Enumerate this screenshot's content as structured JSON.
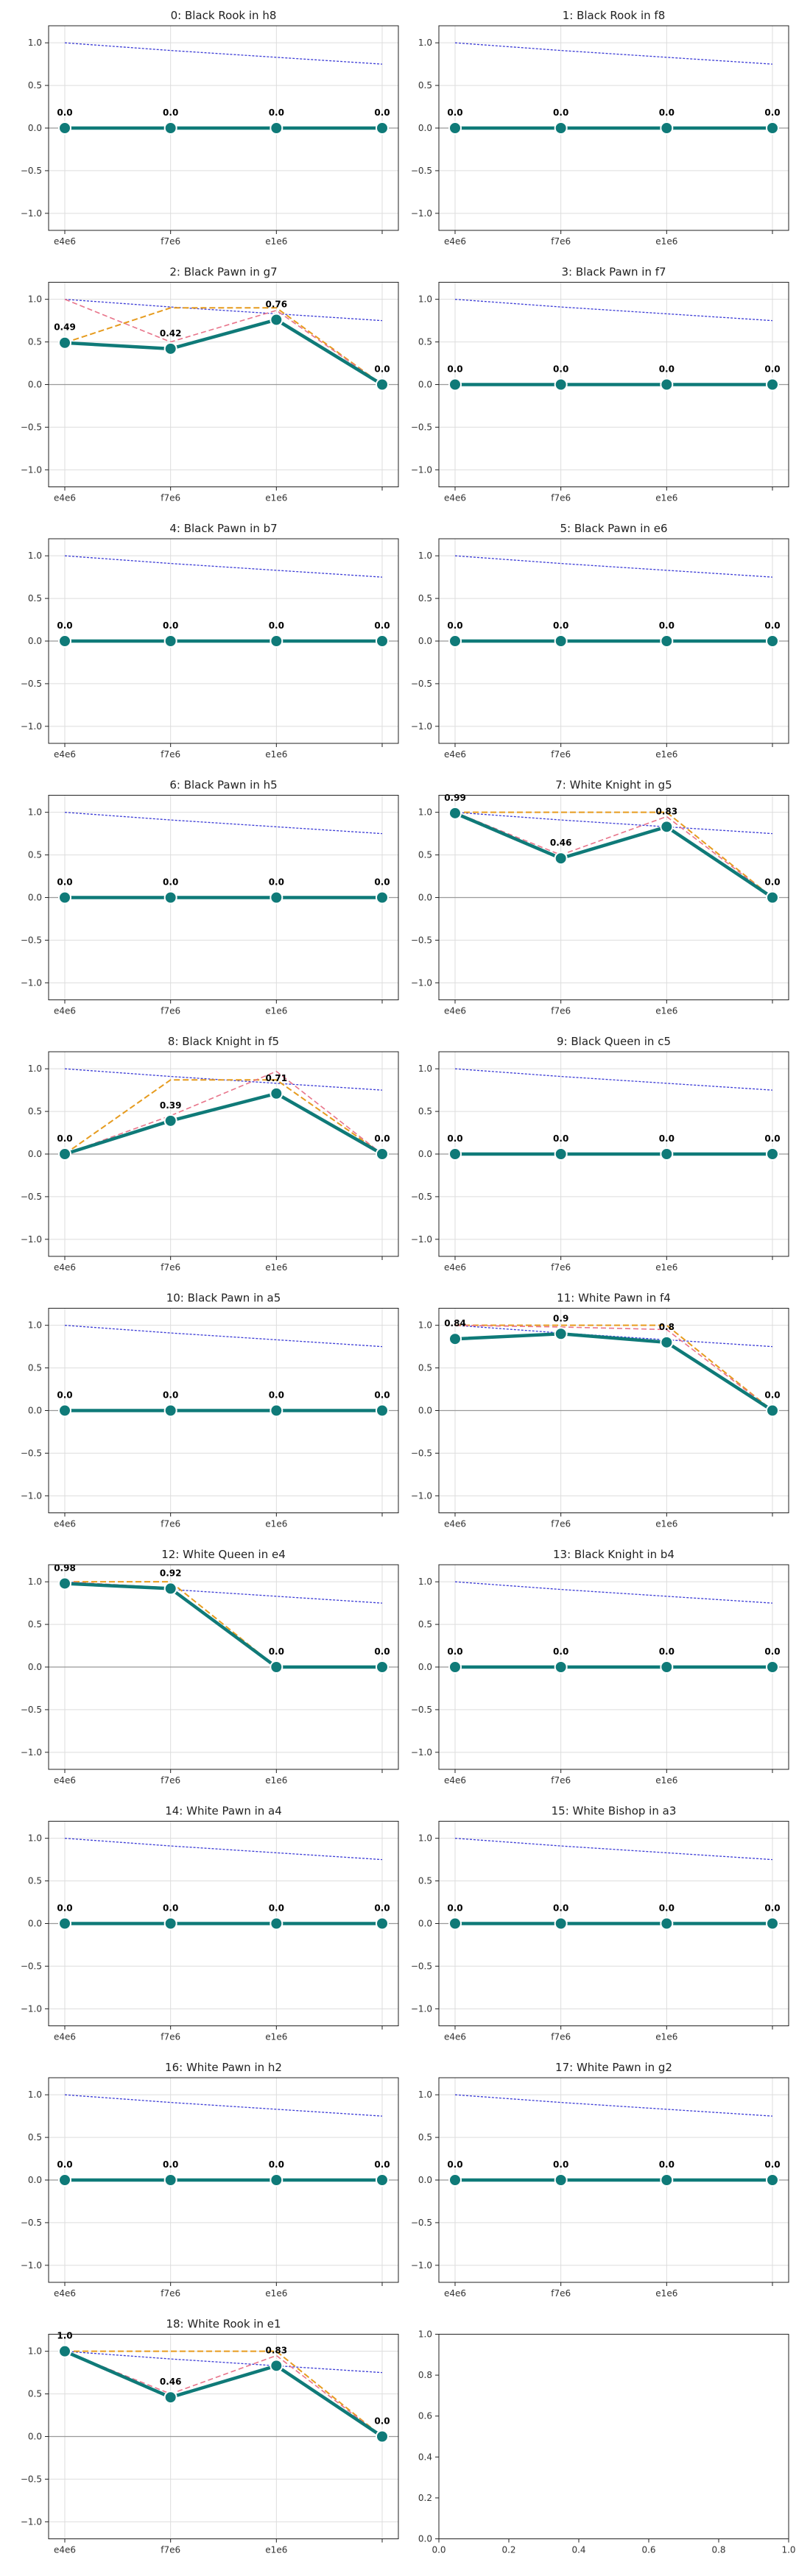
{
  "chart_data": [
    {
      "type": "line",
      "title": "0: Black Rook in h8",
      "categories": [
        "e4e6",
        "f7e6",
        "e1e6",
        ""
      ],
      "ylim": [
        -1.2,
        1.2
      ],
      "yticks": [
        "1.0",
        "0.5",
        "0.0",
        "−0.5",
        "−1.0"
      ],
      "main": [
        0,
        0,
        0,
        0
      ],
      "labels": [
        "0.0",
        "0.0",
        "0.0",
        "0.0"
      ],
      "orange": null,
      "pink": null,
      "blue": [
        1.0,
        0.91,
        0.83,
        0.75
      ]
    },
    {
      "type": "line",
      "title": "1: Black Rook in f8",
      "categories": [
        "e4e6",
        "f7e6",
        "e1e6",
        ""
      ],
      "ylim": [
        -1.2,
        1.2
      ],
      "yticks": [
        "1.0",
        "0.5",
        "0.0",
        "−0.5",
        "−1.0"
      ],
      "main": [
        0,
        0,
        0,
        0
      ],
      "labels": [
        "0.0",
        "0.0",
        "0.0",
        "0.0"
      ],
      "orange": null,
      "pink": null,
      "blue": [
        1.0,
        0.91,
        0.83,
        0.75
      ]
    },
    {
      "type": "line",
      "title": "2: Black Pawn in g7",
      "categories": [
        "e4e6",
        "f7e6",
        "e1e6",
        ""
      ],
      "ylim": [
        -1.2,
        1.2
      ],
      "yticks": [
        "1.0",
        "0.5",
        "0.0",
        "−0.5",
        "−1.0"
      ],
      "main": [
        0.49,
        0.42,
        0.76,
        0.0
      ],
      "labels": [
        "0.49",
        "0.42",
        "0.76",
        "0.0"
      ],
      "orange": [
        0.49,
        0.9,
        0.9,
        0.0
      ],
      "pink": [
        1.0,
        0.5,
        0.87,
        0.0
      ],
      "blue": [
        1.0,
        0.91,
        0.83,
        0.75
      ]
    },
    {
      "type": "line",
      "title": "3: Black Pawn in f7",
      "categories": [
        "e4e6",
        "f7e6",
        "e1e6",
        ""
      ],
      "ylim": [
        -1.2,
        1.2
      ],
      "yticks": [
        "1.0",
        "0.5",
        "0.0",
        "−0.5",
        "−1.0"
      ],
      "main": [
        0,
        0,
        0,
        0
      ],
      "labels": [
        "0.0",
        "0.0",
        "0.0",
        "0.0"
      ],
      "orange": null,
      "pink": null,
      "blue": [
        1.0,
        0.91,
        0.83,
        0.75
      ]
    },
    {
      "type": "line",
      "title": "4: Black Pawn in b7",
      "categories": [
        "e4e6",
        "f7e6",
        "e1e6",
        ""
      ],
      "ylim": [
        -1.2,
        1.2
      ],
      "yticks": [
        "1.0",
        "0.5",
        "0.0",
        "−0.5",
        "−1.0"
      ],
      "main": [
        0,
        0,
        0,
        0
      ],
      "labels": [
        "0.0",
        "0.0",
        "0.0",
        "0.0"
      ],
      "orange": null,
      "pink": null,
      "blue": [
        1.0,
        0.91,
        0.83,
        0.75
      ]
    },
    {
      "type": "line",
      "title": "5: Black Pawn in e6",
      "categories": [
        "e4e6",
        "f7e6",
        "e1e6",
        ""
      ],
      "ylim": [
        -1.2,
        1.2
      ],
      "yticks": [
        "1.0",
        "0.5",
        "0.0",
        "−0.5",
        "−1.0"
      ],
      "main": [
        0,
        0,
        0,
        0
      ],
      "labels": [
        "0.0",
        "0.0",
        "0.0",
        "0.0"
      ],
      "orange": null,
      "pink": null,
      "blue": [
        1.0,
        0.91,
        0.83,
        0.75
      ]
    },
    {
      "type": "line",
      "title": "6: Black Pawn in h5",
      "categories": [
        "e4e6",
        "f7e6",
        "e1e6",
        ""
      ],
      "ylim": [
        -1.2,
        1.2
      ],
      "yticks": [
        "1.0",
        "0.5",
        "0.0",
        "−0.5",
        "−1.0"
      ],
      "main": [
        0,
        0,
        0,
        0
      ],
      "labels": [
        "0.0",
        "0.0",
        "0.0",
        "0.0"
      ],
      "orange": null,
      "pink": null,
      "blue": [
        1.0,
        0.91,
        0.83,
        0.75
      ]
    },
    {
      "type": "line",
      "title": "7: White Knight in g5",
      "categories": [
        "e4e6",
        "f7e6",
        "e1e6",
        ""
      ],
      "ylim": [
        -1.2,
        1.2
      ],
      "yticks": [
        "1.0",
        "0.5",
        "0.0",
        "−0.5",
        "−1.0"
      ],
      "main": [
        0.99,
        0.46,
        0.83,
        0.0
      ],
      "labels": [
        "0.99",
        "0.46",
        "0.83",
        "0.0"
      ],
      "orange": [
        1.0,
        1.0,
        1.0,
        0.0
      ],
      "pink": [
        1.0,
        0.5,
        0.95,
        0.0
      ],
      "blue": [
        1.0,
        0.91,
        0.83,
        0.75
      ]
    },
    {
      "type": "line",
      "title": "8: Black Knight in f5",
      "categories": [
        "e4e6",
        "f7e6",
        "e1e6",
        ""
      ],
      "ylim": [
        -1.2,
        1.2
      ],
      "yticks": [
        "1.0",
        "0.5",
        "0.0",
        "−0.5",
        "−1.0"
      ],
      "main": [
        0.0,
        0.39,
        0.71,
        0.0
      ],
      "labels": [
        "0.0",
        "0.39",
        "0.71",
        "0.0"
      ],
      "orange": [
        0.0,
        0.87,
        0.87,
        0.0
      ],
      "pink": [
        0.0,
        0.45,
        0.97,
        0.0
      ],
      "blue": [
        1.0,
        0.91,
        0.83,
        0.75
      ]
    },
    {
      "type": "line",
      "title": "9: Black Queen in c5",
      "categories": [
        "e4e6",
        "f7e6",
        "e1e6",
        ""
      ],
      "ylim": [
        -1.2,
        1.2
      ],
      "yticks": [
        "1.0",
        "0.5",
        "0.0",
        "−0.5",
        "−1.0"
      ],
      "main": [
        0,
        0,
        0,
        0
      ],
      "labels": [
        "0.0",
        "0.0",
        "0.0",
        "0.0"
      ],
      "orange": null,
      "pink": null,
      "blue": [
        1.0,
        0.91,
        0.83,
        0.75
      ]
    },
    {
      "type": "line",
      "title": "10: Black Pawn in a5",
      "categories": [
        "e4e6",
        "f7e6",
        "e1e6",
        ""
      ],
      "ylim": [
        -1.2,
        1.2
      ],
      "yticks": [
        "1.0",
        "0.5",
        "0.0",
        "−0.5",
        "−1.0"
      ],
      "main": [
        0,
        0,
        0,
        0
      ],
      "labels": [
        "0.0",
        "0.0",
        "0.0",
        "0.0"
      ],
      "orange": null,
      "pink": null,
      "blue": [
        1.0,
        0.91,
        0.83,
        0.75
      ]
    },
    {
      "type": "line",
      "title": "11: White Pawn in f4",
      "categories": [
        "e4e6",
        "f7e6",
        "e1e6",
        ""
      ],
      "ylim": [
        -1.2,
        1.2
      ],
      "yticks": [
        "1.0",
        "0.5",
        "0.0",
        "−0.5",
        "−1.0"
      ],
      "main": [
        0.84,
        0.9,
        0.8,
        0.0
      ],
      "labels": [
        "0.84",
        "0.9",
        "0.8",
        "0.0"
      ],
      "orange": [
        1.0,
        1.0,
        1.0,
        0.0
      ],
      "pink": [
        1.0,
        0.98,
        0.95,
        0.0
      ],
      "blue": [
        1.0,
        0.91,
        0.83,
        0.75
      ]
    },
    {
      "type": "line",
      "title": "12: White Queen in e4",
      "categories": [
        "e4e6",
        "f7e6",
        "e1e6",
        ""
      ],
      "ylim": [
        -1.2,
        1.2
      ],
      "yticks": [
        "1.0",
        "0.5",
        "0.0",
        "−0.5",
        "−1.0"
      ],
      "main": [
        0.98,
        0.92,
        0.0,
        0.0
      ],
      "labels": [
        "0.98",
        "0.92",
        "0.0",
        "0.0"
      ],
      "orange": [
        1.0,
        1.0,
        0.0,
        0.0
      ],
      "pink": [
        1.0,
        0.93,
        0.0,
        0.0
      ],
      "blue": [
        1.0,
        0.91,
        0.83,
        0.75
      ]
    },
    {
      "type": "line",
      "title": "13: Black Knight in b4",
      "categories": [
        "e4e6",
        "f7e6",
        "e1e6",
        ""
      ],
      "ylim": [
        -1.2,
        1.2
      ],
      "yticks": [
        "1.0",
        "0.5",
        "0.0",
        "−0.5",
        "−1.0"
      ],
      "main": [
        0,
        0,
        0,
        0
      ],
      "labels": [
        "0.0",
        "0.0",
        "0.0",
        "0.0"
      ],
      "orange": null,
      "pink": null,
      "blue": [
        1.0,
        0.91,
        0.83,
        0.75
      ]
    },
    {
      "type": "line",
      "title": "14: White Pawn in a4",
      "categories": [
        "e4e6",
        "f7e6",
        "e1e6",
        ""
      ],
      "ylim": [
        -1.2,
        1.2
      ],
      "yticks": [
        "1.0",
        "0.5",
        "0.0",
        "−0.5",
        "−1.0"
      ],
      "main": [
        0,
        0,
        0,
        0
      ],
      "labels": [
        "0.0",
        "0.0",
        "0.0",
        "0.0"
      ],
      "orange": null,
      "pink": null,
      "blue": [
        1.0,
        0.91,
        0.83,
        0.75
      ]
    },
    {
      "type": "line",
      "title": "15: White Bishop in a3",
      "categories": [
        "e4e6",
        "f7e6",
        "e1e6",
        ""
      ],
      "ylim": [
        -1.2,
        1.2
      ],
      "yticks": [
        "1.0",
        "0.5",
        "0.0",
        "−0.5",
        "−1.0"
      ],
      "main": [
        0,
        0,
        0,
        0
      ],
      "labels": [
        "0.0",
        "0.0",
        "0.0",
        "0.0"
      ],
      "orange": null,
      "pink": null,
      "blue": [
        1.0,
        0.91,
        0.83,
        0.75
      ]
    },
    {
      "type": "line",
      "title": "16: White Pawn in h2",
      "categories": [
        "e4e6",
        "f7e6",
        "e1e6",
        ""
      ],
      "ylim": [
        -1.2,
        1.2
      ],
      "yticks": [
        "1.0",
        "0.5",
        "0.0",
        "−0.5",
        "−1.0"
      ],
      "main": [
        0,
        0,
        0,
        0
      ],
      "labels": [
        "0.0",
        "0.0",
        "0.0",
        "0.0"
      ],
      "orange": null,
      "pink": null,
      "blue": [
        1.0,
        0.91,
        0.83,
        0.75
      ]
    },
    {
      "type": "line",
      "title": "17: White Pawn in g2",
      "categories": [
        "e4e6",
        "f7e6",
        "e1e6",
        ""
      ],
      "ylim": [
        -1.2,
        1.2
      ],
      "yticks": [
        "1.0",
        "0.5",
        "0.0",
        "−0.5",
        "−1.0"
      ],
      "main": [
        0,
        0,
        0,
        0
      ],
      "labels": [
        "0.0",
        "0.0",
        "0.0",
        "0.0"
      ],
      "orange": null,
      "pink": null,
      "blue": [
        1.0,
        0.91,
        0.83,
        0.75
      ]
    },
    {
      "type": "line",
      "title": "18: White Rook in e1",
      "categories": [
        "e4e6",
        "f7e6",
        "e1e6",
        ""
      ],
      "ylim": [
        -1.2,
        1.2
      ],
      "yticks": [
        "1.0",
        "0.5",
        "0.0",
        "−0.5",
        "−1.0",
        "−1.0"
      ],
      "main": [
        1.0,
        0.46,
        0.83,
        0.0
      ],
      "labels": [
        "1.0",
        "0.46",
        "0.83",
        "0.0"
      ],
      "orange": [
        1.0,
        1.0,
        1.0,
        0.0
      ],
      "pink": [
        1.0,
        0.5,
        0.95,
        0.0
      ],
      "blue": [
        1.0,
        0.91,
        0.83,
        0.75
      ]
    },
    {
      "type": "line",
      "title": "",
      "categories": [],
      "xticks": [
        "0.0",
        "0.2",
        "0.4",
        "0.6",
        "0.8",
        "1.0"
      ],
      "yticks": [
        "1.0",
        "0.8",
        "0.6",
        "0.4",
        "0.2",
        "0.0"
      ],
      "empty": true
    }
  ],
  "colors": {
    "main": "#0f7a78",
    "orange": "#e69b1e",
    "pink": "#e8748a",
    "blue": "#3b3bd6",
    "grid": "#dddddd",
    "zero": "#999999",
    "frame": "#222222"
  }
}
